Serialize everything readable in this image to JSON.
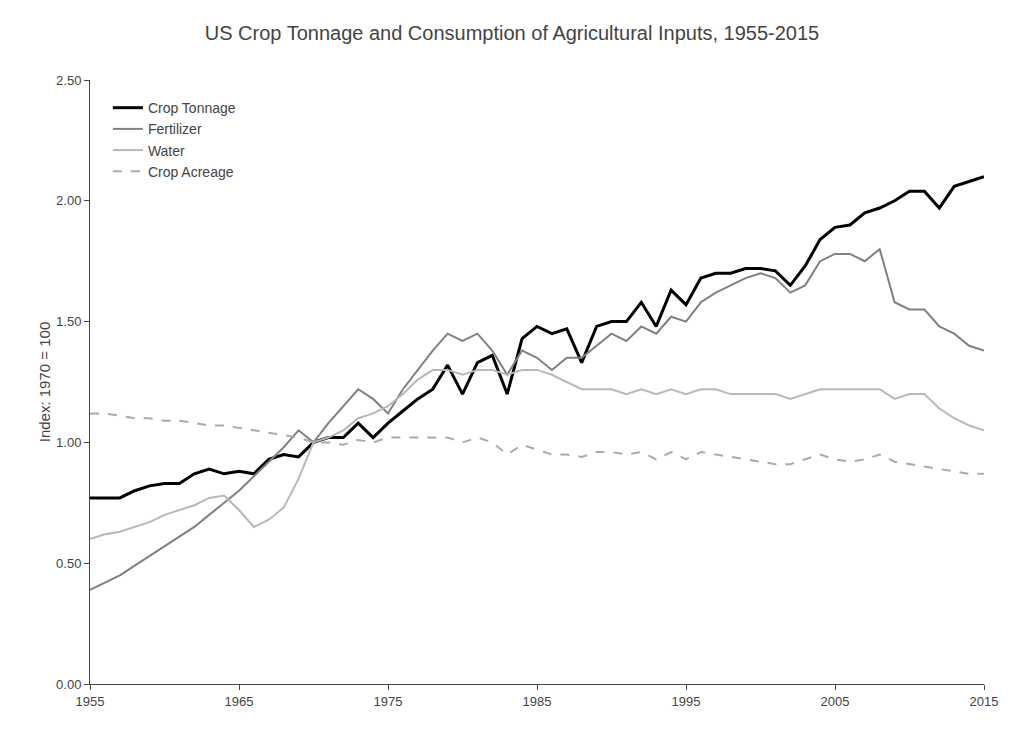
{
  "chart_data": {
    "type": "line",
    "title": "US Crop Tonnage and Consumption of Agricultural Inputs, 1955-2015",
    "ylabel": "Index: 1970 = 100",
    "x": [
      1955,
      1956,
      1957,
      1958,
      1959,
      1960,
      1961,
      1962,
      1963,
      1964,
      1965,
      1966,
      1967,
      1968,
      1969,
      1970,
      1971,
      1972,
      1973,
      1974,
      1975,
      1976,
      1977,
      1978,
      1979,
      1980,
      1981,
      1982,
      1983,
      1984,
      1985,
      1986,
      1987,
      1988,
      1989,
      1990,
      1991,
      1992,
      1993,
      1994,
      1995,
      1996,
      1997,
      1998,
      1999,
      2000,
      2001,
      2002,
      2003,
      2004,
      2005,
      2006,
      2007,
      2008,
      2009,
      2010,
      2011,
      2012,
      2013,
      2014,
      2015
    ],
    "xlim": [
      1955,
      2015
    ],
    "xticks": [
      1955,
      1965,
      1975,
      1985,
      1995,
      2005,
      2015
    ],
    "ylim": [
      0.0,
      2.5
    ],
    "yticks": [
      {
        "value": 0.0,
        "label": "0.00"
      },
      {
        "value": 0.5,
        "label": "0.50"
      },
      {
        "value": 1.0,
        "label": "1.00"
      },
      {
        "value": 1.5,
        "label": "1.50"
      },
      {
        "value": 2.0,
        "label": "2.00"
      },
      {
        "value": 2.5,
        "label": "2.50"
      }
    ],
    "grid": false,
    "legend": "upper left",
    "series": [
      {
        "name": "Crop Tonnage",
        "color": "#000000",
        "line_style": "solid",
        "values": [
          0.77,
          0.77,
          0.77,
          0.8,
          0.82,
          0.83,
          0.83,
          0.87,
          0.89,
          0.87,
          0.88,
          0.87,
          0.93,
          0.95,
          0.94,
          1.0,
          1.02,
          1.02,
          1.08,
          1.02,
          1.08,
          1.13,
          1.18,
          1.22,
          1.32,
          1.2,
          1.33,
          1.36,
          1.2,
          1.43,
          1.48,
          1.45,
          1.47,
          1.33,
          1.48,
          1.5,
          1.5,
          1.58,
          1.48,
          1.63,
          1.57,
          1.68,
          1.7,
          1.7,
          1.72,
          1.72,
          1.71,
          1.65,
          1.73,
          1.84,
          1.89,
          1.9,
          1.95,
          1.97,
          2.0,
          2.04,
          2.04,
          1.97,
          2.06,
          2.08,
          2.1
        ]
      },
      {
        "name": "Fertilizer",
        "color": "#808080",
        "line_style": "solid",
        "values": [
          0.39,
          0.42,
          0.45,
          0.49,
          0.53,
          0.57,
          0.61,
          0.65,
          0.7,
          0.75,
          0.8,
          0.86,
          0.92,
          0.98,
          1.05,
          1.0,
          1.08,
          1.15,
          1.22,
          1.18,
          1.12,
          1.22,
          1.3,
          1.38,
          1.45,
          1.42,
          1.45,
          1.38,
          1.28,
          1.38,
          1.35,
          1.3,
          1.35,
          1.35,
          1.4,
          1.45,
          1.42,
          1.48,
          1.45,
          1.52,
          1.5,
          1.58,
          1.62,
          1.65,
          1.68,
          1.7,
          1.68,
          1.62,
          1.65,
          1.75,
          1.78,
          1.78,
          1.75,
          1.8,
          1.58,
          1.55,
          1.55,
          1.48,
          1.45,
          1.4,
          1.38
        ]
      },
      {
        "name": "Water",
        "color": "#b8b8b8",
        "line_style": "solid",
        "values": [
          0.6,
          0.62,
          0.63,
          0.65,
          0.67,
          0.7,
          0.72,
          0.74,
          0.77,
          0.78,
          0.72,
          0.65,
          0.68,
          0.73,
          0.85,
          1.0,
          1.02,
          1.05,
          1.1,
          1.12,
          1.15,
          1.2,
          1.26,
          1.3,
          1.3,
          1.28,
          1.3,
          1.3,
          1.28,
          1.3,
          1.3,
          1.28,
          1.25,
          1.22,
          1.22,
          1.22,
          1.2,
          1.22,
          1.2,
          1.22,
          1.2,
          1.22,
          1.22,
          1.2,
          1.2,
          1.2,
          1.2,
          1.18,
          1.2,
          1.22,
          1.22,
          1.22,
          1.22,
          1.22,
          1.18,
          1.2,
          1.2,
          1.14,
          1.1,
          1.07,
          1.05
        ]
      },
      {
        "name": "Crop Acreage",
        "color": "#aaaaaa",
        "line_style": "dashed",
        "values": [
          1.12,
          1.12,
          1.11,
          1.1,
          1.1,
          1.09,
          1.09,
          1.08,
          1.07,
          1.07,
          1.06,
          1.05,
          1.04,
          1.03,
          1.02,
          1.0,
          1.0,
          0.99,
          1.01,
          1.0,
          1.02,
          1.02,
          1.02,
          1.02,
          1.02,
          1.0,
          1.02,
          1.0,
          0.95,
          0.99,
          0.97,
          0.95,
          0.95,
          0.94,
          0.96,
          0.96,
          0.95,
          0.96,
          0.93,
          0.96,
          0.93,
          0.96,
          0.95,
          0.94,
          0.93,
          0.92,
          0.91,
          0.91,
          0.93,
          0.95,
          0.93,
          0.92,
          0.93,
          0.95,
          0.92,
          0.91,
          0.9,
          0.89,
          0.88,
          0.87,
          0.87
        ]
      }
    ]
  }
}
